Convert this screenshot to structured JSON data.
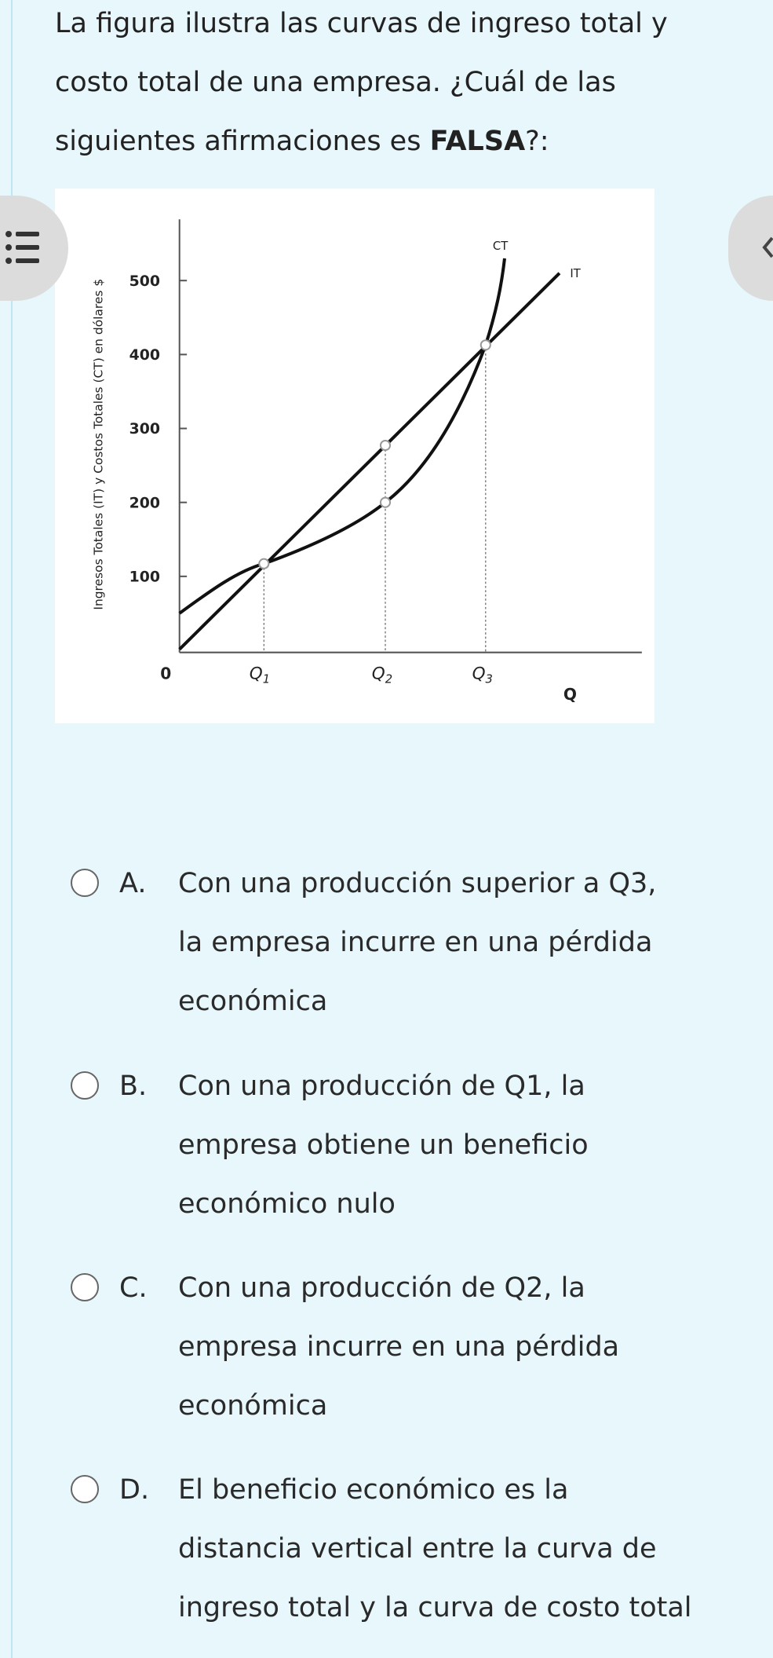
{
  "question": {
    "lines": [
      "La figura ilustra las curvas de ingreso total y",
      "costo total de una empresa. ¿Cuál de las",
      "siguientes afirmaciones es "
    ],
    "emphasis": "FALSA",
    "end": "?:"
  },
  "figure": {
    "y_axis_label": "Ingresos Totales (IT) y Costos Totales (CT) en dólares $",
    "yticks": [
      100,
      200,
      300,
      400,
      500
    ],
    "origin_label": "0",
    "x_labels": [
      {
        "main": "Q",
        "sub": "1"
      },
      {
        "main": "Q",
        "sub": "2"
      },
      {
        "main": "Q",
        "sub": "3"
      }
    ],
    "x_axis_label": "Q",
    "curve_labels": [
      "CT",
      "IT"
    ]
  },
  "options": [
    {
      "letter": "A.",
      "lines": [
        "Con una producción superior a Q3,",
        "la empresa incurre en una pérdida",
        "económica"
      ]
    },
    {
      "letter": "B.",
      "lines": [
        "Con una producción de Q1, la",
        "empresa obtiene un beneficio",
        "económico nulo"
      ]
    },
    {
      "letter": "C.",
      "lines": [
        "Con una producción de Q2, la",
        "empresa incurre en una pérdida",
        "económica"
      ]
    },
    {
      "letter": "D.",
      "lines": [
        "El beneficio económico es la",
        "distancia vertical entre la curva de",
        "ingreso total y la curva de costo total"
      ]
    }
  ]
}
